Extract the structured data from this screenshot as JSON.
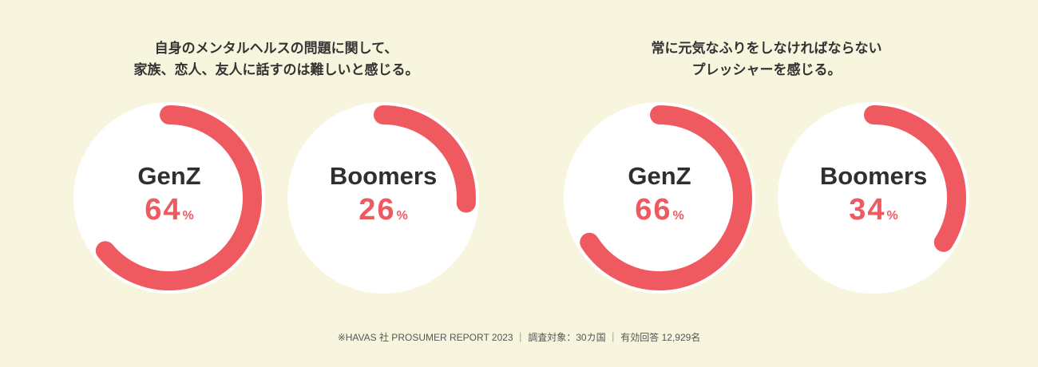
{
  "titles": [
    {
      "line1": "自身のメンタルヘルスの問題に関して、",
      "line2": "家族、恋人、友人に話すのは難しいと感じる。"
    },
    {
      "line1": "常に元気なふりをしなければならない",
      "line2": "プレッシャーを感じる。"
    }
  ],
  "footer": "※HAVAS 社 PROSUMER REPORT 2023 ｜ 調査対象：30カ国 ｜ 有効回答 12,929名",
  "colors": {
    "accent": "#ef5a60",
    "background": "#f8f5de",
    "circle": "#ffffff",
    "text": "#2f2f2f"
  },
  "chart_data": [
    {
      "type": "pie",
      "title": "自身のメンタルヘルスの問題に関して、家族、恋人、友人に話すのは難しいと感じる。",
      "donuts": [
        {
          "name": "GenZ",
          "value": 64,
          "unit": "%"
        },
        {
          "name": "Boomers",
          "value": 26,
          "unit": "%"
        }
      ]
    },
    {
      "type": "pie",
      "title": "常に元気なふりをしなければならないプレッシャーを感じる。",
      "donuts": [
        {
          "name": "GenZ",
          "value": 66,
          "unit": "%"
        },
        {
          "name": "Boomers",
          "value": 34,
          "unit": "%"
        }
      ]
    }
  ]
}
